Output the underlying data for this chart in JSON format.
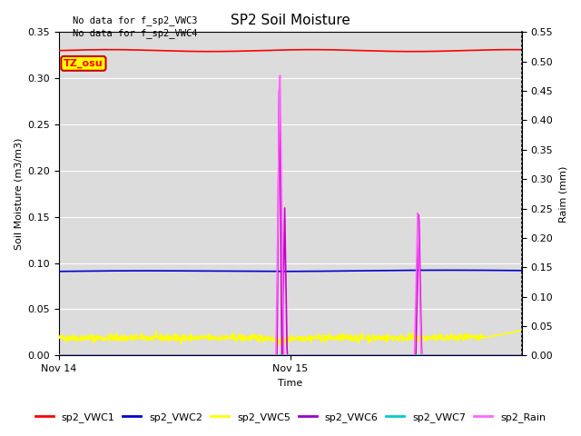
{
  "title": "SP2 Soil Moisture",
  "ylabel_left": "Soil Moisture (m3/m3)",
  "ylabel_right": "Raim (mm)",
  "xlabel": "Time",
  "no_data_text": [
    "No data for f_sp2_VWC3",
    "No data for f_sp2_VWC4"
  ],
  "tz_label": "TZ_osu",
  "x_ticks_labels": [
    "Nov 14",
    "Nov 15"
  ],
  "x_ticks_pos": [
    0,
    24
  ],
  "xlim": [
    0,
    48
  ],
  "ylim_left": [
    0.0,
    0.35
  ],
  "ylim_right": [
    0.0,
    0.55
  ],
  "yticks_left": [
    0.0,
    0.05,
    0.1,
    0.15,
    0.2,
    0.25,
    0.3,
    0.35
  ],
  "yticks_right": [
    0.0,
    0.05,
    0.1,
    0.15,
    0.2,
    0.25,
    0.3,
    0.35,
    0.4,
    0.45,
    0.5,
    0.55
  ],
  "series_colors": {
    "sp2_VWC1": "#ff0000",
    "sp2_VWC2": "#0000cc",
    "sp2_VWC5": "#ffff00",
    "sp2_VWC6": "#cc00cc",
    "sp2_VWC7": "#00cccc",
    "sp2_Rain": "#ff66ff"
  },
  "legend_colors": {
    "sp2_VWC1": "#ff0000",
    "sp2_VWC2": "#0000cc",
    "sp2_VWC5": "#ffff00",
    "sp2_VWC6": "#9900cc",
    "sp2_VWC7": "#00cccc",
    "sp2_Rain": "#ff66ff"
  },
  "lw": 1.2,
  "plot_bg_color": "#dcdcdc",
  "fig_bg_color": "#ffffff",
  "grid_color": "#ffffff",
  "nodata_fontsize": 7.5,
  "title_fontsize": 11,
  "axis_label_fontsize": 8,
  "tick_fontsize": 8
}
